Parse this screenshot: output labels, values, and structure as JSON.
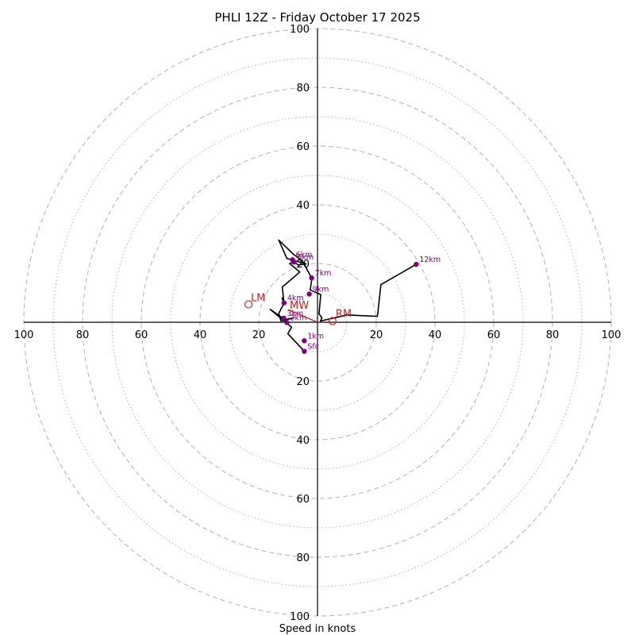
{
  "chart_data": {
    "type": "hodograph",
    "title": "PHLI 12Z - Friday October 17 2025",
    "xlabel": "Speed in knots",
    "units": "knots",
    "ring_labels": [
      20,
      40,
      60,
      80,
      100
    ],
    "ring_values": [
      10,
      20,
      30,
      40,
      50,
      60,
      70,
      80,
      90,
      100
    ],
    "axis_tick_labels": {
      "left": [
        "100",
        "80",
        "60",
        "40",
        "20"
      ],
      "right": [
        "20",
        "40",
        "60",
        "80",
        "100"
      ],
      "top": [
        "100",
        "80",
        "60",
        "40",
        "20"
      ],
      "bottom": [
        "20",
        "40",
        "60",
        "80",
        "100"
      ]
    },
    "range": [
      -100,
      100
    ],
    "hodograph_trace": [
      {
        "u": -4.5,
        "v": -9.9
      },
      {
        "u": -10.1,
        "v": -3.9
      },
      {
        "u": -8.8,
        "v": -1.7
      },
      {
        "u": -16.1,
        "v": 4.4
      },
      {
        "u": -11.1,
        "v": 0.9
      },
      {
        "u": -8.0,
        "v": 1.5
      },
      {
        "u": -12.4,
        "v": 0.4
      },
      {
        "u": -13.2,
        "v": 3.0
      },
      {
        "u": -11.5,
        "v": 6.3
      },
      {
        "u": -12.0,
        "v": 8.3
      },
      {
        "u": -11.4,
        "v": 6.6
      },
      {
        "u": -12.0,
        "v": 12.0
      },
      {
        "u": -6.0,
        "v": 17.1
      },
      {
        "u": -9.5,
        "v": 20.0
      },
      {
        "u": -8.0,
        "v": 20.5
      },
      {
        "u": -6.5,
        "v": 19.5
      },
      {
        "u": -3.9,
        "v": 19.9
      },
      {
        "u": -10.4,
        "v": 21.7
      },
      {
        "u": -13.2,
        "v": 28.0
      },
      {
        "u": -8.0,
        "v": 23.0
      },
      {
        "u": -5.2,
        "v": 21.0
      },
      {
        "u": -1.9,
        "v": 14.9
      },
      {
        "u": -2.5,
        "v": 11.0
      },
      {
        "u": 1.1,
        "v": 9.4
      },
      {
        "u": 0.5,
        "v": 2.9
      },
      {
        "u": 1.5,
        "v": 1.5
      },
      {
        "u": 1.0,
        "v": 0.4
      },
      {
        "u": 10.0,
        "v": 2.5
      },
      {
        "u": 20.4,
        "v": 2.0
      },
      {
        "u": 21.6,
        "v": 12.8
      },
      {
        "u": 33.6,
        "v": 19.7
      }
    ],
    "height_markers": [
      {
        "label": "Sfc",
        "u": -4.5,
        "v": -9.9
      },
      {
        "label": "1km",
        "u": -4.5,
        "v": -6.3
      },
      {
        "label": "2km",
        "u": -10.4,
        "v": -0.1
      },
      {
        "label": "3km",
        "u": -11.5,
        "v": 1.4
      },
      {
        "label": "4km",
        "u": -11.4,
        "v": 6.6
      },
      {
        "label": "5km",
        "u": -8.0,
        "v": 20.5
      },
      {
        "label": "6km",
        "u": -8.5,
        "v": 21.3
      },
      {
        "label": "7km",
        "u": -2.0,
        "v": 15.1
      },
      {
        "label": "9km",
        "u": -2.8,
        "v": 9.6
      },
      {
        "label": "12km",
        "u": 33.6,
        "v": 19.7
      }
    ],
    "storm_motion": {
      "mean_wind": {
        "label": "MW",
        "u": -10.0,
        "v": 4.3
      },
      "left_mover": {
        "label": "LM",
        "u": -23.5,
        "v": 6.1
      },
      "right_mover": {
        "label": "RM",
        "u": 5.1,
        "v": 0.4
      }
    },
    "colors": {
      "trace": "#000000",
      "marker": "#800080",
      "storm_motion": "#cc2020",
      "grid": "#b3b3b3",
      "axis": "#000000"
    }
  }
}
